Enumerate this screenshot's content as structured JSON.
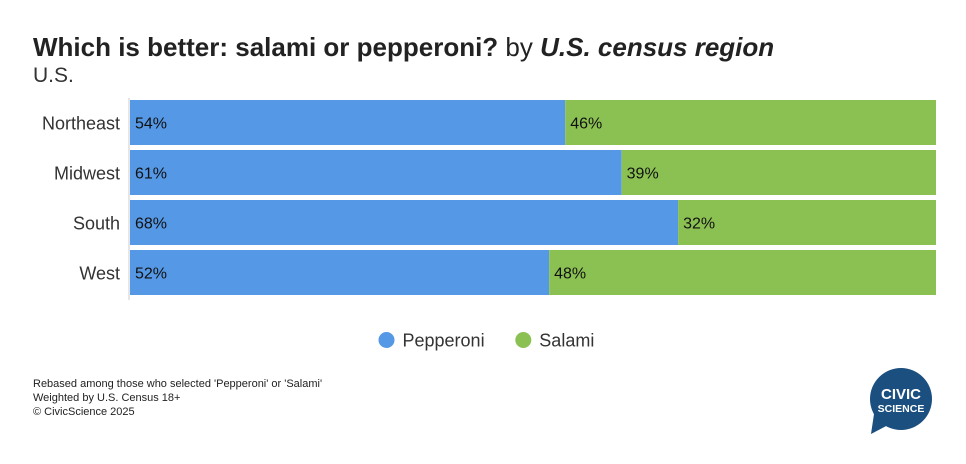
{
  "title": {
    "bold": "Which is better: salami or pepperoni?",
    "mid": " by ",
    "italic": "U.S. census region"
  },
  "subtitle": "U.S.",
  "chart_data": {
    "type": "bar",
    "orientation": "horizontal",
    "stacked": true,
    "categories": [
      "Northeast",
      "Midwest",
      "South",
      "West"
    ],
    "series": [
      {
        "name": "Pepperoni",
        "values": [
          54,
          61,
          68,
          52
        ],
        "color": "#5599e6"
      },
      {
        "name": "Salami",
        "values": [
          46,
          39,
          32,
          48
        ],
        "color": "#8bc153"
      }
    ],
    "value_suffix": "%",
    "xlim": [
      0,
      100
    ],
    "legend_position": "bottom-center",
    "grid": false
  },
  "footer": {
    "lines": [
      "Rebased among those who selected 'Pepperoni' or 'Salami'",
      "Weighted by U.S. Census 18+",
      "© CivicScience 2025"
    ]
  },
  "logo": {
    "line1": "CIVIC",
    "line2": "SCIENCE",
    "color": "#1b4f7f"
  }
}
